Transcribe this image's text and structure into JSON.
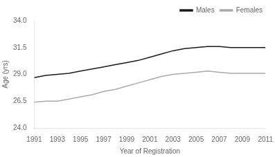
{
  "chart_data": {
    "type": "line",
    "x_label": "Year of Registration",
    "y_label": "Age (yrs)",
    "x": [
      1991,
      1992,
      1993,
      1994,
      1995,
      1996,
      1997,
      1998,
      1999,
      2000,
      2001,
      2002,
      2003,
      2004,
      2005,
      2006,
      2007,
      2008,
      2009,
      2010,
      2011
    ],
    "series": [
      {
        "name": "Males",
        "color": "#1a1a1a",
        "values": [
          28.7,
          28.9,
          29.0,
          29.1,
          29.3,
          29.5,
          29.7,
          29.9,
          30.1,
          30.3,
          30.6,
          30.9,
          31.2,
          31.4,
          31.5,
          31.6,
          31.6,
          31.5,
          31.5,
          31.5,
          31.5
        ]
      },
      {
        "name": "Females",
        "color": "#aaaaaa",
        "values": [
          26.4,
          26.5,
          26.5,
          26.7,
          26.9,
          27.1,
          27.4,
          27.6,
          27.9,
          28.2,
          28.5,
          28.8,
          29.0,
          29.1,
          29.2,
          29.3,
          29.2,
          29.1,
          29.1,
          29.1,
          29.1
        ]
      }
    ],
    "xlim": [
      1991,
      2011
    ],
    "xticks": [
      1991,
      1993,
      1995,
      1997,
      1999,
      2001,
      2003,
      2005,
      2007,
      2009,
      2011
    ],
    "ylim": [
      24.0,
      34.0
    ],
    "yticks": [
      {
        "value": 24.0,
        "label": "24.0"
      },
      26.5,
      {
        "value": 29.0,
        "label": "29.0"
      },
      31.5,
      {
        "value": 34.0,
        "label": "34.0"
      }
    ],
    "grid": false,
    "legend": "upper right"
  }
}
